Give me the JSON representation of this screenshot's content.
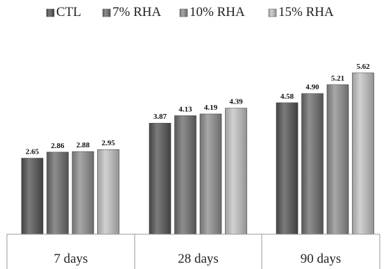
{
  "chart_data": {
    "type": "bar",
    "categories": [
      "7 days",
      "28 days",
      "90 days"
    ],
    "series": [
      {
        "name": "CTL",
        "values": [
          2.65,
          3.87,
          4.58
        ],
        "color": "#555555"
      },
      {
        "name": "7% RHA",
        "values": [
          2.86,
          4.13,
          4.9
        ],
        "color": "#6e6e6e"
      },
      {
        "name": "10% RHA",
        "values": [
          2.88,
          4.19,
          5.21
        ],
        "color": "#8f8f8f"
      },
      {
        "name": "15% RHA",
        "values": [
          2.95,
          4.39,
          5.62
        ],
        "color": "#c4c4c4"
      }
    ],
    "ylim": [
      0,
      6
    ],
    "legend_position": "top",
    "grid": false
  }
}
